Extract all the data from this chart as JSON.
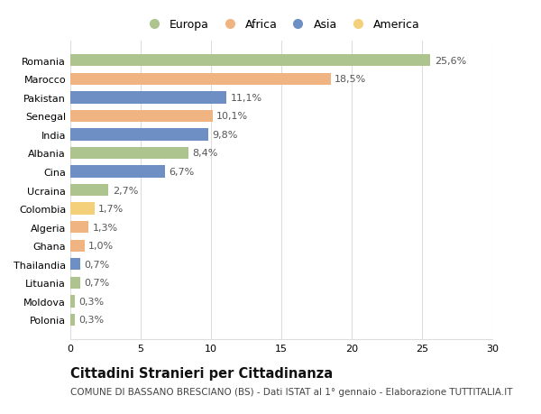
{
  "countries": [
    "Romania",
    "Marocco",
    "Pakistan",
    "Senegal",
    "India",
    "Albania",
    "Cina",
    "Ucraina",
    "Colombia",
    "Algeria",
    "Ghana",
    "Thailandia",
    "Lituania",
    "Moldova",
    "Polonia"
  ],
  "values": [
    25.6,
    18.5,
    11.1,
    10.1,
    9.8,
    8.4,
    6.7,
    2.7,
    1.7,
    1.3,
    1.0,
    0.7,
    0.7,
    0.3,
    0.3
  ],
  "labels": [
    "25,6%",
    "18,5%",
    "11,1%",
    "10,1%",
    "9,8%",
    "8,4%",
    "6,7%",
    "2,7%",
    "1,7%",
    "1,3%",
    "1,0%",
    "0,7%",
    "0,7%",
    "0,3%",
    "0,3%"
  ],
  "continents": [
    "Europa",
    "Africa",
    "Asia",
    "Africa",
    "Asia",
    "Europa",
    "Asia",
    "Europa",
    "America",
    "Africa",
    "Africa",
    "Asia",
    "Europa",
    "Europa",
    "Europa"
  ],
  "continent_colors": {
    "Europa": "#aec48f",
    "Africa": "#f0b482",
    "Asia": "#6e8fc4",
    "America": "#f5d07a"
  },
  "legend_order": [
    "Europa",
    "Africa",
    "Asia",
    "America"
  ],
  "title": "Cittadini Stranieri per Cittadinanza",
  "subtitle": "COMUNE DI BASSANO BRESCIANO (BS) - Dati ISTAT al 1° gennaio - Elaborazione TUTTITALIA.IT",
  "xlim": [
    0,
    30
  ],
  "xticks": [
    0,
    5,
    10,
    15,
    20,
    25,
    30
  ],
  "bg_color": "#ffffff",
  "grid_color": "#dddddd",
  "bar_height": 0.65,
  "title_fontsize": 10.5,
  "subtitle_fontsize": 7.5,
  "label_fontsize": 8,
  "tick_fontsize": 8,
  "legend_fontsize": 9
}
